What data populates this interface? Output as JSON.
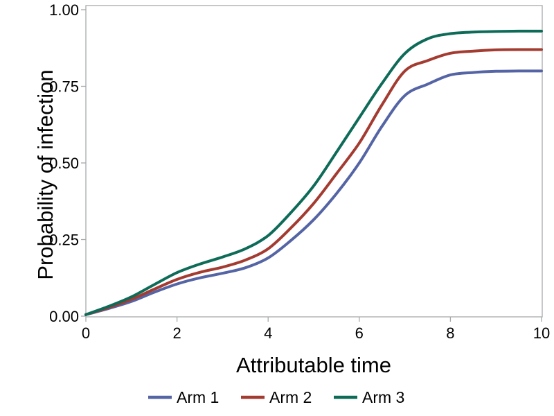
{
  "chart_data": {
    "type": "line",
    "title": "",
    "xlabel": "Attributable time",
    "ylabel": "Probability of infection",
    "xlim": [
      0,
      10
    ],
    "ylim": [
      0,
      1
    ],
    "grid": false,
    "legend_position": "bottom",
    "x_ticks": [
      0,
      2,
      4,
      6,
      8,
      10
    ],
    "x_tick_labels": [
      "0",
      "2",
      "4",
      "6",
      "8",
      "10"
    ],
    "y_ticks": [
      0,
      0.25,
      0.5,
      0.75,
      1
    ],
    "y_tick_labels": [
      "0.00",
      "0.25",
      "0.50",
      "0.75",
      "1.00"
    ],
    "x": [
      0,
      0.5,
      1,
      1.5,
      2,
      2.5,
      3,
      3.5,
      4,
      4.5,
      5,
      5.5,
      6,
      6.5,
      7,
      7.5,
      8,
      8.5,
      9,
      9.5,
      10
    ],
    "series": [
      {
        "name": "Arm 1",
        "color": "#5464A4",
        "values": [
          0.005,
          0.025,
          0.048,
          0.078,
          0.105,
          0.125,
          0.14,
          0.158,
          0.19,
          0.247,
          0.315,
          0.4,
          0.5,
          0.62,
          0.72,
          0.757,
          0.787,
          0.795,
          0.799,
          0.8,
          0.8
        ]
      },
      {
        "name": "Arm 2",
        "color": "#A33B31",
        "values": [
          0.005,
          0.028,
          0.055,
          0.088,
          0.12,
          0.143,
          0.16,
          0.183,
          0.22,
          0.288,
          0.368,
          0.465,
          0.565,
          0.69,
          0.8,
          0.834,
          0.858,
          0.865,
          0.869,
          0.87,
          0.87
        ]
      },
      {
        "name": "Arm 3",
        "color": "#0E6B58",
        "values": [
          0.005,
          0.032,
          0.063,
          0.103,
          0.142,
          0.17,
          0.193,
          0.22,
          0.263,
          0.338,
          0.425,
          0.535,
          0.648,
          0.76,
          0.857,
          0.905,
          0.922,
          0.927,
          0.929,
          0.93,
          0.93
        ]
      }
    ]
  },
  "colors": {
    "axis_line": "#A6A9AB",
    "text": "#000000",
    "background": "#FFFFFF"
  }
}
